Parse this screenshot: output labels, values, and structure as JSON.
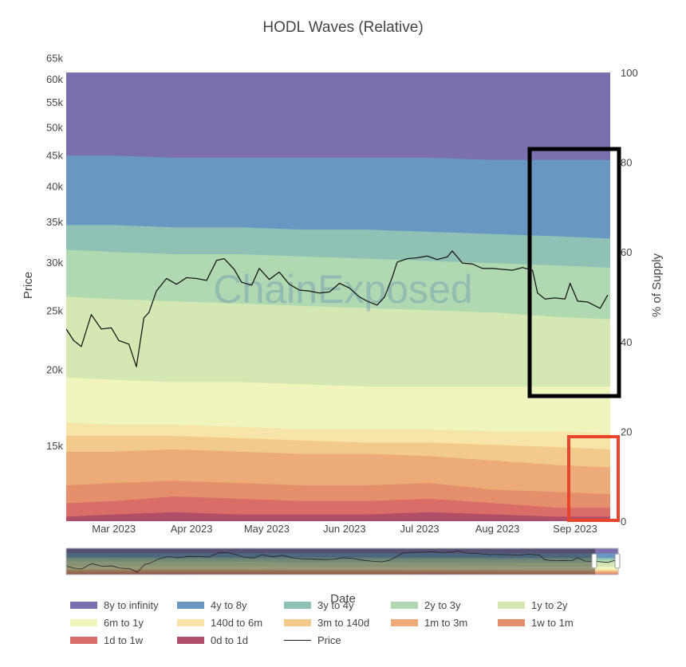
{
  "chart_data": {
    "type": "area",
    "title": "HODL Waves (Relative)",
    "xlabel": "Date",
    "ylabel_left": "Price",
    "ylabel_right": "% of Supply",
    "watermark": "ChainExposed",
    "x_ticks": [
      "Mar 2023",
      "Apr 2023",
      "May 2023",
      "Jun 2023",
      "Jul 2023",
      "Aug 2023",
      "Sep 2023"
    ],
    "left_axis": {
      "scale": "log",
      "ticks": [
        "15k",
        "20k",
        "25k",
        "30k",
        "35k",
        "40k",
        "45k",
        "50k",
        "55k",
        "60k",
        "65k"
      ],
      "tick_values": [
        15000,
        20000,
        25000,
        30000,
        35000,
        40000,
        45000,
        50000,
        55000,
        60000,
        65000
      ]
    },
    "right_axis": {
      "range": [
        0,
        100
      ],
      "ticks": [
        "0",
        "20",
        "40",
        "60",
        "80",
        "100"
      ],
      "tick_values": [
        0,
        20,
        40,
        60,
        80,
        100
      ]
    },
    "x_range": [
      "2023-02-10",
      "2023-09-15"
    ],
    "series": [
      {
        "name": "8y to infinity",
        "color": "#7b6fae"
      },
      {
        "name": "4y to 8y",
        "color": "#6a97c2"
      },
      {
        "name": "3y to 4y",
        "color": "#8fc1b5"
      },
      {
        "name": "2y to 3y",
        "color": "#b0d8b1"
      },
      {
        "name": "1y to 2y",
        "color": "#d5e8b4"
      },
      {
        "name": "6m to 1y",
        "color": "#f0f5be"
      },
      {
        "name": "140d to 6m",
        "color": "#f7e4a8"
      },
      {
        "name": "3m to 140d",
        "color": "#f2cb8c"
      },
      {
        "name": "1m to 3m",
        "color": "#eeab7a"
      },
      {
        "name": "1w to 1m",
        "color": "#e68f6c"
      },
      {
        "name": "1d to 1w",
        "color": "#db6d68"
      },
      {
        "name": "0d to 1d",
        "color": "#b04d68"
      },
      {
        "name": "Price",
        "color": "#222222"
      }
    ],
    "band_dates": [
      "2023-02-10",
      "2023-03-01",
      "2023-03-25",
      "2023-04-20",
      "2023-05-15",
      "2023-06-10",
      "2023-07-05",
      "2023-07-31",
      "2023-08-25",
      "2023-09-15"
    ],
    "band_boundaries": {
      "0d to 1d": [
        1.0,
        1.5,
        2.0,
        1.5,
        1.5,
        1.5,
        2.0,
        1.5,
        1.0,
        1.0
      ],
      "1d to 1w": [
        4.0,
        4.5,
        5.5,
        5.0,
        4.5,
        4.5,
        5.0,
        4.0,
        3.0,
        3.0
      ],
      "1w to 1m": [
        8.0,
        8.5,
        9.0,
        8.5,
        8.0,
        8.0,
        8.5,
        7.0,
        6.5,
        6.0
      ],
      "1m to 3m": [
        15.5,
        15.5,
        16.0,
        15.5,
        15.0,
        15.0,
        14.5,
        13.5,
        12.5,
        12.0
      ],
      "3m to 140d": [
        19.0,
        19.0,
        19.0,
        18.5,
        18.0,
        17.5,
        17.5,
        17.0,
        16.5,
        16.0
      ],
      "140d to 6m": [
        22.0,
        21.5,
        21.5,
        21.0,
        20.5,
        20.5,
        20.5,
        20.0,
        20.0,
        19.5
      ],
      "6m to 1y": [
        32.0,
        31.5,
        31.0,
        31.0,
        30.5,
        30.0,
        30.0,
        30.0,
        30.0,
        30.0
      ],
      "1y to 2y": [
        50.0,
        49.5,
        49.0,
        48.5,
        48.0,
        47.5,
        47.0,
        46.5,
        45.5,
        45.0
      ],
      "2y to 3y": [
        60.5,
        60.0,
        59.5,
        59.5,
        59.0,
        58.5,
        58.0,
        57.5,
        57.0,
        56.5
      ],
      "3y to 4y": [
        66.0,
        66.0,
        65.5,
        65.5,
        65.0,
        65.0,
        64.5,
        64.0,
        63.5,
        63.0
      ],
      "4y to 8y": [
        81.5,
        81.5,
        81.0,
        81.0,
        81.0,
        81.0,
        81.0,
        80.5,
        80.5,
        80.5
      ],
      "8y to infinity": [
        100,
        100,
        100,
        100,
        100,
        100,
        100,
        100,
        100,
        100
      ]
    },
    "price": {
      "dates": [
        "2023-02-10",
        "2023-02-13",
        "2023-02-16",
        "2023-02-20",
        "2023-02-24",
        "2023-02-28",
        "2023-03-03",
        "2023-03-07",
        "2023-03-10",
        "2023-03-13",
        "2023-03-15",
        "2023-03-18",
        "2023-03-22",
        "2023-03-26",
        "2023-03-30",
        "2023-04-03",
        "2023-04-07",
        "2023-04-11",
        "2023-04-14",
        "2023-04-18",
        "2023-04-21",
        "2023-04-25",
        "2023-04-28",
        "2023-05-02",
        "2023-05-06",
        "2023-05-10",
        "2023-05-14",
        "2023-05-18",
        "2023-05-22",
        "2023-05-26",
        "2023-05-30",
        "2023-06-03",
        "2023-06-07",
        "2023-06-10",
        "2023-06-14",
        "2023-06-17",
        "2023-06-20",
        "2023-06-22",
        "2023-06-26",
        "2023-06-30",
        "2023-07-04",
        "2023-07-08",
        "2023-07-12",
        "2023-07-14",
        "2023-07-18",
        "2023-07-22",
        "2023-07-26",
        "2023-07-30",
        "2023-08-03",
        "2023-08-07",
        "2023-08-11",
        "2023-08-15",
        "2023-08-17",
        "2023-08-20",
        "2023-08-24",
        "2023-08-28",
        "2023-08-30",
        "2023-09-02",
        "2023-09-06",
        "2023-09-11",
        "2023-09-14"
      ],
      "values": [
        23300,
        22300,
        21800,
        24600,
        23300,
        23400,
        22300,
        22000,
        20200,
        24300,
        24800,
        26900,
        28200,
        27600,
        28300,
        28200,
        28000,
        30200,
        30400,
        29200,
        27800,
        27500,
        29300,
        28100,
        28900,
        27600,
        27000,
        26900,
        26700,
        26800,
        27700,
        27200,
        26300,
        25900,
        25500,
        26300,
        28300,
        30000,
        30400,
        30500,
        30700,
        30300,
        30600,
        31300,
        29900,
        29800,
        29300,
        29300,
        29200,
        29100,
        29400,
        29100,
        26700,
        26100,
        26200,
        26100,
        27700,
        25900,
        25800,
        25200,
        26500
      ]
    }
  }
}
